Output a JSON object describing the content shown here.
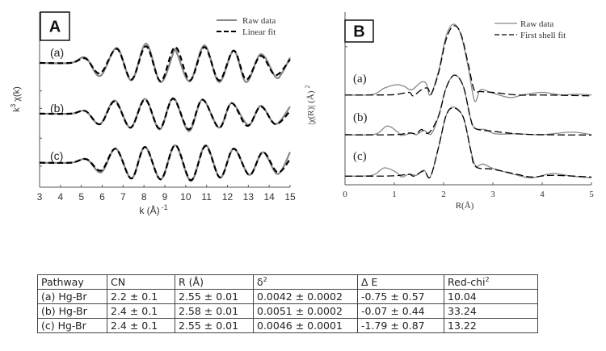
{
  "chart_data": [
    {
      "type": "line",
      "panel_label": "A",
      "xlabel": "k (Å)",
      "xlabel_sup": "-1",
      "ylabel": "k",
      "ylabel_sup": "3",
      "ylabel_rest": " χ(k)",
      "xlim": [
        3,
        15
      ],
      "xticks": [
        "3",
        "4",
        "5",
        "6",
        "7",
        "8",
        "9",
        "10",
        "11",
        "12",
        "13",
        "14",
        "15"
      ],
      "ylim": [
        0,
        10
      ],
      "y_tick_labels": false,
      "legend": {
        "position": "top-right",
        "entries": [
          {
            "label": "Raw data",
            "style": "solid",
            "color": "#888888"
          },
          {
            "label": "Linear fit",
            "style": "dashed",
            "color": "#000000"
          }
        ]
      },
      "sample_labels": [
        "(a)",
        "(b)",
        "(c)"
      ],
      "series": [
        {
          "sample": "(a)",
          "kind": "raw",
          "points": [
            [
              3,
              7.1
            ],
            [
              4.5,
              7.1
            ],
            [
              5.2,
              7.4
            ],
            [
              5.9,
              6.35
            ],
            [
              6.7,
              7.95
            ],
            [
              7.4,
              6.1
            ],
            [
              8.1,
              8.2
            ],
            [
              8.8,
              6.0
            ],
            [
              9.45,
              7.8
            ],
            [
              9.6,
              7.6
            ],
            [
              10.2,
              6.05
            ],
            [
              10.9,
              8.1
            ],
            [
              11.6,
              6.0
            ],
            [
              12.3,
              7.8
            ],
            [
              12.9,
              6.0
            ],
            [
              13.6,
              7.6
            ],
            [
              14.3,
              6.3
            ],
            [
              14.6,
              6.5
            ],
            [
              15,
              7.4
            ]
          ]
        },
        {
          "sample": "(a)",
          "kind": "fit",
          "points": [
            [
              3,
              7.1
            ],
            [
              4.5,
              7.1
            ],
            [
              5.2,
              7.35
            ],
            [
              5.9,
              6.5
            ],
            [
              6.7,
              7.9
            ],
            [
              7.4,
              6.15
            ],
            [
              8.1,
              8.05
            ],
            [
              8.8,
              6.05
            ],
            [
              9.5,
              8.0
            ],
            [
              10.2,
              6.1
            ],
            [
              10.9,
              8.0
            ],
            [
              11.6,
              6.1
            ],
            [
              12.3,
              7.8
            ],
            [
              12.9,
              6.15
            ],
            [
              13.6,
              7.5
            ],
            [
              14.3,
              6.4
            ],
            [
              15,
              7.3
            ]
          ]
        },
        {
          "sample": "(b)",
          "kind": "raw",
          "points": [
            [
              3,
              4.2
            ],
            [
              4.5,
              4.2
            ],
            [
              5.2,
              4.35
            ],
            [
              5.9,
              3.6
            ],
            [
              6.6,
              4.95
            ],
            [
              7.35,
              3.4
            ],
            [
              8.05,
              5.05
            ],
            [
              8.75,
              3.3
            ],
            [
              9.4,
              5.1
            ],
            [
              10.15,
              3.2
            ],
            [
              10.8,
              5.0
            ],
            [
              11.6,
              3.4
            ],
            [
              12.2,
              4.8
            ],
            [
              13.0,
              3.55
            ],
            [
              13.6,
              4.65
            ],
            [
              14.3,
              3.6
            ],
            [
              15,
              4.6
            ]
          ]
        },
        {
          "sample": "(b)",
          "kind": "fit",
          "points": [
            [
              3,
              4.2
            ],
            [
              4.5,
              4.2
            ],
            [
              5.2,
              4.35
            ],
            [
              5.9,
              3.6
            ],
            [
              6.6,
              4.9
            ],
            [
              7.35,
              3.4
            ],
            [
              8.05,
              5.0
            ],
            [
              8.75,
              3.35
            ],
            [
              9.4,
              5.05
            ],
            [
              10.15,
              3.3
            ],
            [
              10.8,
              5.0
            ],
            [
              11.6,
              3.4
            ],
            [
              12.2,
              4.8
            ],
            [
              12.95,
              3.5
            ],
            [
              13.6,
              4.6
            ],
            [
              14.3,
              3.6
            ],
            [
              15,
              4.35
            ]
          ]
        },
        {
          "sample": "(c)",
          "kind": "raw",
          "points": [
            [
              3,
              1.4
            ],
            [
              4.5,
              1.4
            ],
            [
              5.25,
              1.6
            ],
            [
              5.95,
              0.85
            ],
            [
              6.65,
              2.2
            ],
            [
              7.4,
              0.5
            ],
            [
              8.05,
              2.3
            ],
            [
              8.8,
              0.45
            ],
            [
              9.5,
              2.4
            ],
            [
              10.25,
              0.35
            ],
            [
              10.95,
              2.4
            ],
            [
              11.65,
              0.55
            ],
            [
              12.3,
              2.2
            ],
            [
              13.05,
              0.7
            ],
            [
              13.7,
              2.0
            ],
            [
              14.4,
              0.75
            ],
            [
              15,
              2.0
            ]
          ]
        },
        {
          "sample": "(c)",
          "kind": "fit",
          "points": [
            [
              3,
              1.4
            ],
            [
              4.5,
              1.4
            ],
            [
              5.25,
              1.6
            ],
            [
              5.95,
              0.95
            ],
            [
              6.65,
              2.2
            ],
            [
              7.4,
              0.5
            ],
            [
              8.05,
              2.3
            ],
            [
              8.8,
              0.45
            ],
            [
              9.5,
              2.4
            ],
            [
              10.25,
              0.4
            ],
            [
              10.95,
              2.35
            ],
            [
              11.65,
              0.55
            ],
            [
              12.3,
              2.2
            ],
            [
              13.05,
              0.7
            ],
            [
              13.7,
              2.0
            ],
            [
              14.4,
              0.85
            ],
            [
              15,
              1.6
            ]
          ]
        }
      ]
    },
    {
      "type": "line",
      "panel_label": "B",
      "xlabel": "R(Å)",
      "ylabel": "|χ(R)| (Å)",
      "ylabel_sup": "2",
      "xlim": [
        0,
        5
      ],
      "xticks": [
        "0",
        "1",
        "2",
        "3",
        "4",
        "5"
      ],
      "ylim": [
        0,
        10
      ],
      "y_tick_labels": false,
      "legend": {
        "position": "top-right",
        "entries": [
          {
            "label": "Raw data",
            "style": "solid",
            "color": "#888888"
          },
          {
            "label": "First shell fit",
            "style": "dashed",
            "color": "#000000"
          }
        ]
      },
      "sample_labels": [
        "(a)",
        "(b)",
        "(c)"
      ],
      "series": [
        {
          "sample": "(a)",
          "kind": "raw",
          "points": [
            [
              0,
              5.2
            ],
            [
              0.55,
              5.22
            ],
            [
              0.8,
              5.6
            ],
            [
              1.05,
              5.8
            ],
            [
              1.2,
              5.7
            ],
            [
              1.35,
              5.5
            ],
            [
              1.55,
              5.95
            ],
            [
              1.65,
              5.85
            ],
            [
              1.73,
              5.2
            ],
            [
              1.9,
              6.6
            ],
            [
              2.05,
              8.6
            ],
            [
              2.2,
              9.3
            ],
            [
              2.35,
              8.7
            ],
            [
              2.5,
              6.8
            ],
            [
              2.63,
              4.85
            ],
            [
              2.75,
              5.5
            ],
            [
              3.0,
              5.3
            ],
            [
              3.35,
              5.05
            ],
            [
              3.6,
              5.2
            ],
            [
              4.0,
              5.35
            ],
            [
              4.4,
              5.2
            ],
            [
              4.7,
              5.25
            ],
            [
              5,
              5.2
            ]
          ]
        },
        {
          "sample": "(a)",
          "kind": "fit",
          "points": [
            [
              0,
              5.2
            ],
            [
              0.6,
              5.2
            ],
            [
              1.0,
              5.22
            ],
            [
              1.3,
              5.35
            ],
            [
              1.38,
              5.15
            ],
            [
              1.55,
              5.5
            ],
            [
              1.68,
              5.6
            ],
            [
              1.75,
              5.25
            ],
            [
              1.9,
              6.5
            ],
            [
              2.05,
              8.4
            ],
            [
              2.2,
              9.2
            ],
            [
              2.35,
              8.75
            ],
            [
              2.5,
              7.0
            ],
            [
              2.62,
              5.5
            ],
            [
              2.75,
              5.4
            ],
            [
              3,
              5.35
            ],
            [
              3.5,
              5.2
            ],
            [
              4,
              5.2
            ],
            [
              5,
              5.15
            ]
          ]
        },
        {
          "sample": "(b)",
          "kind": "raw",
          "points": [
            [
              0,
              2.9
            ],
            [
              0.6,
              2.92
            ],
            [
              0.85,
              3.4
            ],
            [
              1.05,
              3.1
            ],
            [
              1.15,
              2.85
            ],
            [
              1.35,
              3.0
            ],
            [
              1.45,
              2.9
            ],
            [
              1.6,
              3.15
            ],
            [
              1.75,
              2.95
            ],
            [
              1.9,
              4.0
            ],
            [
              2.05,
              5.6
            ],
            [
              2.22,
              6.35
            ],
            [
              2.4,
              5.7
            ],
            [
              2.55,
              3.8
            ],
            [
              2.65,
              3.25
            ],
            [
              2.85,
              3.2
            ],
            [
              3.05,
              2.95
            ],
            [
              3.5,
              2.95
            ],
            [
              4,
              2.9
            ],
            [
              4.6,
              3.05
            ],
            [
              5,
              2.9
            ]
          ]
        },
        {
          "sample": "(b)",
          "kind": "fit",
          "points": [
            [
              0,
              2.9
            ],
            [
              1.0,
              2.9
            ],
            [
              1.3,
              3.0
            ],
            [
              1.45,
              2.95
            ],
            [
              1.55,
              3.2
            ],
            [
              1.7,
              3.0
            ],
            [
              1.9,
              4.0
            ],
            [
              2.05,
              5.6
            ],
            [
              2.22,
              6.35
            ],
            [
              2.4,
              5.7
            ],
            [
              2.55,
              3.8
            ],
            [
              2.65,
              3.25
            ],
            [
              3.0,
              3.1
            ],
            [
              3.5,
              2.95
            ],
            [
              4,
              2.9
            ],
            [
              5,
              2.88
            ]
          ]
        },
        {
          "sample": "(c)",
          "kind": "raw",
          "points": [
            [
              0,
              0.5
            ],
            [
              0.55,
              0.55
            ],
            [
              0.8,
              0.98
            ],
            [
              1.05,
              0.7
            ],
            [
              1.15,
              0.45
            ],
            [
              1.3,
              0.62
            ],
            [
              1.45,
              0.55
            ],
            [
              1.6,
              0.85
            ],
            [
              1.73,
              0.45
            ],
            [
              1.9,
              2.2
            ],
            [
              2.05,
              4.0
            ],
            [
              2.2,
              4.5
            ],
            [
              2.4,
              3.9
            ],
            [
              2.55,
              2.0
            ],
            [
              2.65,
              1.1
            ],
            [
              2.8,
              1.2
            ],
            [
              3.0,
              0.95
            ],
            [
              3.5,
              0.55
            ],
            [
              3.8,
              0.4
            ],
            [
              4.2,
              0.65
            ],
            [
              4.6,
              0.5
            ],
            [
              5,
              0.4
            ]
          ]
        },
        {
          "sample": "(c)",
          "kind": "fit",
          "points": [
            [
              0,
              0.5
            ],
            [
              0.6,
              0.5
            ],
            [
              1.0,
              0.52
            ],
            [
              1.3,
              0.6
            ],
            [
              1.4,
              0.5
            ],
            [
              1.6,
              0.8
            ],
            [
              1.73,
              0.45
            ],
            [
              1.9,
              2.2
            ],
            [
              2.05,
              4.0
            ],
            [
              2.2,
              4.45
            ],
            [
              2.4,
              3.9
            ],
            [
              2.55,
              2.0
            ],
            [
              2.65,
              1.05
            ],
            [
              3.0,
              0.9
            ],
            [
              3.5,
              0.6
            ],
            [
              3.8,
              0.45
            ],
            [
              4.2,
              0.55
            ],
            [
              5,
              0.45
            ]
          ]
        }
      ]
    }
  ],
  "table": {
    "headers": [
      "Pathway",
      "CN",
      "R (Å)",
      "δ",
      "Δ E",
      "Red-chi"
    ],
    "header_sups": {
      "delta": "2",
      "redchi": "2"
    },
    "rows": [
      [
        "(a) Hg-Br",
        "2.2 ± 0.1",
        "2.55 ± 0.01",
        "0.0042 ± 0.0002",
        "-0.75 ± 0.57",
        "10.04"
      ],
      [
        "(b) Hg-Br",
        "2.4 ± 0.1",
        "2.58 ± 0.01",
        "0.0051 ± 0.0002",
        "-0.07 ± 0.44",
        "33.24"
      ],
      [
        "(c) Hg-Br",
        "2.4 ± 0.1",
        "2.55 ± 0.01",
        "0.0046 ± 0.0001",
        "-1.79 ± 0.87",
        "13.22"
      ]
    ]
  }
}
